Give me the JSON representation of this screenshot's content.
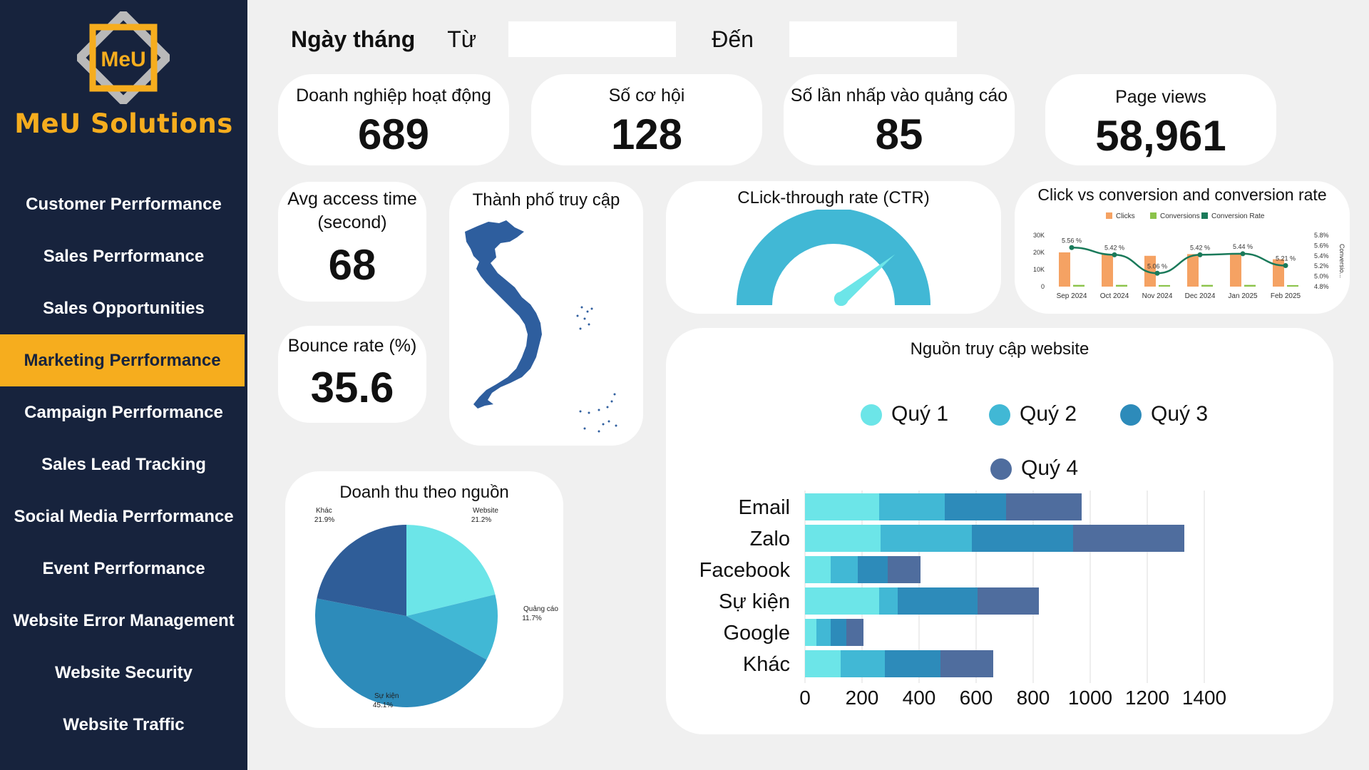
{
  "brand": {
    "logo_text": "MeU",
    "name": "MeU Solutions"
  },
  "nav": [
    "Customer Perrformance",
    "Sales Perrformance",
    "Sales Opportunities",
    "Marketing Perrformance",
    "Campaign Perrformance",
    "Sales Lead Tracking",
    "Social Media Perrformance",
    "Event Perrformance",
    "Website Error Management",
    "Website Security",
    "Website Traffic"
  ],
  "active_nav": "Marketing Perrformance",
  "date_filter": {
    "title": "Ngày tháng",
    "from_label": "Từ",
    "to_label": "Đến",
    "from_value": "",
    "to_value": ""
  },
  "kpis": {
    "businesses": {
      "label": "Doanh nghiệp hoạt động",
      "value": "689"
    },
    "opportunities": {
      "label": "Số cơ hội",
      "value": "128"
    },
    "ad_clicks": {
      "label": "Số lần nhấp vào quảng cáo",
      "value": "85"
    },
    "page_views": {
      "label": "Page views",
      "value": "58,961"
    },
    "avg_access": {
      "label_line1": "Avg access time",
      "label_line2": "(second)",
      "value": "68"
    },
    "bounce": {
      "label": "Bounce rate (%)",
      "value": "35.6"
    }
  },
  "map": {
    "title": "Thành phố truy cập"
  },
  "ctr": {
    "title": "CLick-through rate (CTR)",
    "needle_fraction": 0.78
  },
  "colors": {
    "sidebar": "#17233d",
    "accent": "#f6ad1e",
    "q1": "#6ce5e8",
    "q2": "#41b8d5",
    "q3": "#2d8bba",
    "q4": "#4f6d9e",
    "map": "#2e5e9e"
  },
  "chart_data": [
    {
      "type": "bar",
      "title": "Click vs conversion and conversion rate",
      "categories": [
        "Sep 2024",
        "Oct 2024",
        "Nov 2024",
        "Dec 2024",
        "Jan 2025",
        "Feb 2025"
      ],
      "series": [
        {
          "name": "Clicks",
          "values": [
            20000,
            19000,
            18000,
            19000,
            19500,
            16000
          ]
        },
        {
          "name": "Conversions",
          "values": [
            1000,
            1000,
            900,
            1000,
            1000,
            850
          ]
        },
        {
          "name": "Conversion Rate",
          "values": [
            5.56,
            5.42,
            5.06,
            5.42,
            5.44,
            5.21
          ],
          "labels": [
            "5.56 %",
            "5.42 %",
            "5.06 %",
            "5.42 %",
            "5.44 %",
            "5.21 %"
          ]
        }
      ],
      "y_ticks": [
        "0",
        "10K",
        "20K",
        "30K"
      ],
      "y2_ticks": [
        "4.8%",
        "5.0%",
        "5.2%",
        "5.4%",
        "5.6%",
        "5.8%"
      ],
      "ylim": [
        0,
        30000
      ],
      "y2lim": [
        4.8,
        5.8
      ],
      "y2label": "Conversio...",
      "legend": "top"
    },
    {
      "type": "pie",
      "title": "Doanh thu theo nguồn",
      "categories": [
        "Website",
        "Quảng cáo",
        "Sự kiện",
        "Khác"
      ],
      "values": [
        21.2,
        11.7,
        45.1,
        21.9
      ],
      "labels": [
        "21.2%",
        "11.7%",
        "45.1%",
        "21.9%"
      ]
    },
    {
      "type": "bar",
      "orientation": "horizontal",
      "stacked": true,
      "title": "Nguồn truy cập website",
      "categories": [
        "Email",
        "Zalo",
        "Facebook",
        "Sự kiện",
        "Google",
        "Khác"
      ],
      "series": [
        {
          "name": "Quý 1",
          "values": [
            260,
            265,
            90,
            260,
            40,
            125
          ]
        },
        {
          "name": "Quý 2",
          "values": [
            230,
            320,
            95,
            65,
            50,
            155
          ]
        },
        {
          "name": "Quý 3",
          "values": [
            215,
            355,
            105,
            280,
            55,
            195
          ]
        },
        {
          "name": "Quý 4",
          "values": [
            265,
            390,
            115,
            215,
            60,
            185
          ]
        }
      ],
      "x_ticks": [
        "0",
        "200",
        "400",
        "600",
        "800",
        "1000",
        "1200",
        "1400"
      ],
      "xlim": [
        0,
        1400
      ],
      "grid": true,
      "legend": "top"
    }
  ]
}
